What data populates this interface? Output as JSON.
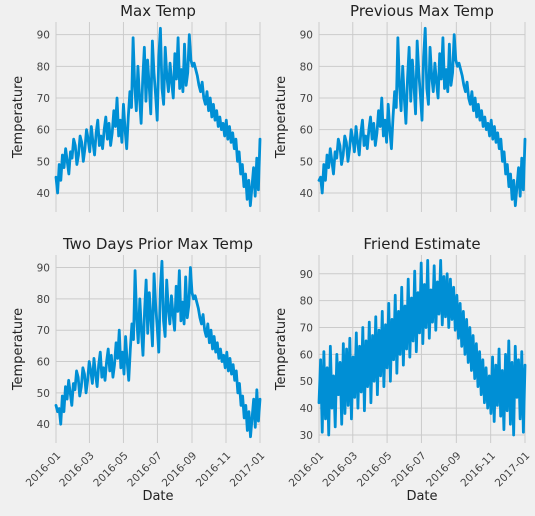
{
  "figure": {
    "background": "#f0f0f0",
    "line_color": "#008fd5",
    "grid_color": "#cbcbcb"
  },
  "chart_data": [
    {
      "type": "line",
      "title": "Max Temp",
      "xlabel": "",
      "ylabel": "Temperature",
      "grid": true,
      "x_start": "2016-01-01",
      "x_end": "2017-01-01",
      "ylim": [
        34,
        94
      ],
      "yticks": [
        40,
        50,
        60,
        70,
        80,
        90
      ],
      "xticks": [
        "2016-01",
        "2016-03",
        "2016-05",
        "2016-07",
        "2016-09",
        "2016-11",
        "2017-01"
      ],
      "x_tick_labels_visible": false,
      "series": [
        {
          "values": [
            45,
            40,
            49,
            44,
            52,
            48,
            54,
            50,
            46,
            53,
            51,
            57,
            55,
            49,
            52,
            58,
            56,
            50,
            54,
            60,
            57,
            53,
            61,
            56,
            52,
            59,
            63,
            55,
            58,
            54,
            60,
            64,
            57,
            62,
            55,
            59,
            66,
            61,
            70,
            58,
            63,
            56,
            68,
            60,
            54,
            64,
            72,
            67,
            89,
            74,
            66,
            80,
            70,
            62,
            76,
            86,
            69,
            82,
            74,
            65,
            88,
            78,
            71,
            63,
            83,
            92,
            73,
            68,
            86,
            77,
            72,
            81,
            75,
            70,
            84,
            76,
            89,
            73,
            79,
            72,
            87,
            74,
            78,
            90,
            82,
            80,
            81,
            79,
            77,
            74,
            72,
            75,
            70,
            68,
            72,
            66,
            70,
            64,
            68,
            63,
            66,
            61,
            64,
            60,
            62,
            58,
            63,
            57,
            61,
            56,
            59,
            54,
            57,
            50,
            53,
            46,
            49,
            42,
            46,
            38,
            44,
            36,
            42,
            48,
            39,
            51,
            41,
            57
          ]
        }
      ]
    },
    {
      "type": "line",
      "title": "Previous Max Temp",
      "xlabel": "",
      "ylabel": "Temperature",
      "grid": true,
      "x_start": "2016-01-01",
      "x_end": "2017-01-01",
      "ylim": [
        34,
        94
      ],
      "yticks": [
        40,
        50,
        60,
        70,
        80,
        90
      ],
      "xticks": [
        "2016-01",
        "2016-03",
        "2016-05",
        "2016-07",
        "2016-09",
        "2016-11",
        "2017-01"
      ],
      "x_tick_labels_visible": false,
      "series": [
        {
          "values": [
            44,
            45,
            40,
            49,
            44,
            52,
            48,
            54,
            50,
            46,
            53,
            51,
            57,
            55,
            49,
            52,
            58,
            56,
            50,
            54,
            60,
            57,
            53,
            61,
            56,
            52,
            59,
            63,
            55,
            58,
            54,
            60,
            64,
            57,
            62,
            55,
            59,
            66,
            61,
            70,
            58,
            63,
            56,
            68,
            60,
            54,
            64,
            72,
            67,
            89,
            74,
            66,
            80,
            70,
            62,
            76,
            86,
            69,
            82,
            74,
            65,
            88,
            78,
            71,
            63,
            83,
            92,
            73,
            68,
            86,
            77,
            72,
            81,
            75,
            70,
            84,
            76,
            89,
            73,
            79,
            72,
            87,
            74,
            78,
            90,
            82,
            80,
            81,
            79,
            77,
            74,
            72,
            75,
            70,
            68,
            72,
            66,
            70,
            64,
            68,
            63,
            66,
            61,
            64,
            60,
            62,
            58,
            63,
            57,
            61,
            56,
            59,
            54,
            57,
            50,
            53,
            46,
            49,
            42,
            46,
            38,
            44,
            36,
            42,
            48,
            39,
            51,
            41,
            57
          ]
        }
      ]
    },
    {
      "type": "line",
      "title": "Two Days Prior Max Temp",
      "xlabel": "Date",
      "ylabel": "Temperature",
      "grid": true,
      "x_start": "2016-01-01",
      "x_end": "2017-01-01",
      "ylim": [
        34,
        94
      ],
      "yticks": [
        40,
        50,
        60,
        70,
        80,
        90
      ],
      "xticks": [
        "2016-01",
        "2016-03",
        "2016-05",
        "2016-07",
        "2016-09",
        "2016-11",
        "2017-01"
      ],
      "x_tick_labels_visible": true,
      "series": [
        {
          "values": [
            46,
            44,
            45,
            40,
            49,
            44,
            52,
            48,
            54,
            50,
            46,
            53,
            51,
            57,
            55,
            49,
            52,
            58,
            56,
            50,
            54,
            60,
            57,
            53,
            61,
            56,
            52,
            59,
            63,
            55,
            58,
            54,
            60,
            64,
            57,
            62,
            55,
            59,
            66,
            61,
            70,
            58,
            63,
            56,
            68,
            60,
            54,
            64,
            72,
            67,
            89,
            74,
            66,
            80,
            70,
            62,
            76,
            86,
            69,
            82,
            74,
            65,
            88,
            78,
            71,
            63,
            83,
            92,
            73,
            68,
            86,
            77,
            72,
            81,
            75,
            70,
            84,
            76,
            89,
            73,
            79,
            72,
            87,
            74,
            78,
            90,
            82,
            80,
            81,
            79,
            77,
            74,
            72,
            75,
            70,
            68,
            72,
            66,
            70,
            64,
            68,
            63,
            66,
            61,
            64,
            60,
            62,
            58,
            63,
            57,
            61,
            56,
            59,
            54,
            57,
            50,
            53,
            46,
            49,
            42,
            46,
            38,
            44,
            36,
            42,
            48,
            39,
            51,
            41,
            48
          ]
        }
      ]
    },
    {
      "type": "line",
      "title": "Friend Estimate",
      "xlabel": "Date",
      "ylabel": "Temperature",
      "grid": true,
      "x_start": "2016-01-01",
      "x_end": "2017-01-01",
      "ylim": [
        27,
        97
      ],
      "yticks": [
        30,
        40,
        50,
        60,
        70,
        80,
        90
      ],
      "xticks": [
        "2016-01",
        "2016-03",
        "2016-05",
        "2016-07",
        "2016-09",
        "2016-11",
        "2017-01"
      ],
      "x_tick_labels_visible": true,
      "series": [
        {
          "values": [
            42,
            58,
            31,
            61,
            36,
            55,
            30,
            63,
            40,
            52,
            33,
            60,
            45,
            57,
            34,
            64,
            38,
            62,
            41,
            66,
            36,
            59,
            44,
            68,
            40,
            63,
            46,
            70,
            39,
            65,
            48,
            72,
            42,
            67,
            50,
            74,
            45,
            69,
            52,
            76,
            48,
            71,
            55,
            79,
            50,
            73,
            58,
            82,
            53,
            76,
            60,
            85,
            56,
            78,
            62,
            88,
            59,
            81,
            65,
            91,
            61,
            83,
            68,
            94,
            64,
            86,
            70,
            95,
            66,
            84,
            72,
            93,
            69,
            87,
            75,
            95,
            71,
            89,
            74,
            90,
            70,
            88,
            73,
            85,
            69,
            82,
            66,
            79,
            63,
            76,
            60,
            73,
            57,
            70,
            54,
            67,
            51,
            64,
            48,
            61,
            45,
            58,
            42,
            55,
            40,
            52,
            38,
            59,
            35,
            56,
            41,
            62,
            37,
            54,
            32,
            60,
            39,
            65,
            34,
            57,
            30,
            63,
            44,
            58,
            36,
            61,
            31,
            56
          ]
        }
      ]
    }
  ]
}
